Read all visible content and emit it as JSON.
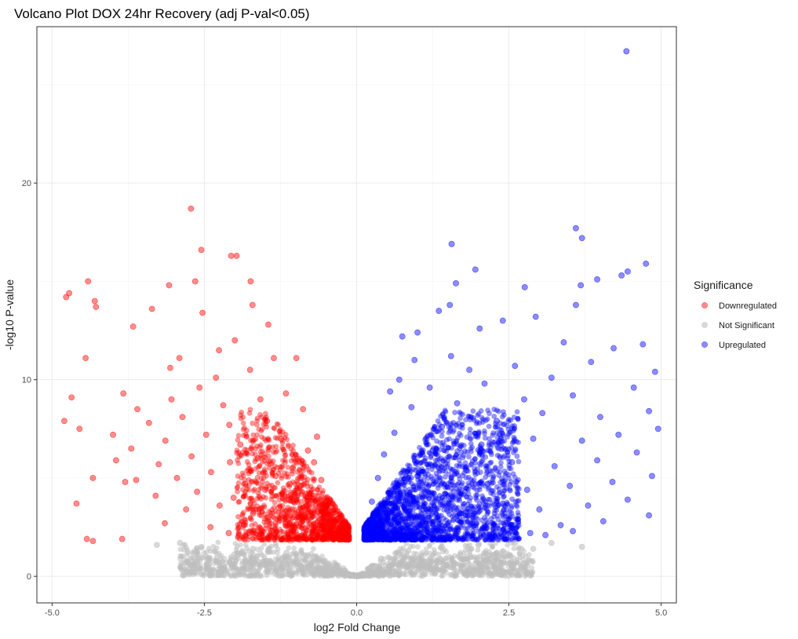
{
  "chart_data": {
    "type": "scatter",
    "title": "Volcano Plot DOX 24hr Recovery (adj P-val<0.05)",
    "xlabel": "log2 Fold Change",
    "ylabel": "-log10 P-value",
    "xlim": [
      -5.25,
      5.25
    ],
    "ylim": [
      -1.35,
      27.95
    ],
    "x_ticks": [
      -5.0,
      -2.5,
      0.0,
      2.5,
      5.0
    ],
    "x_tick_labels": [
      "-5.0",
      "-2.5",
      "0.0",
      "2.5",
      "5.0"
    ],
    "y_ticks": [
      0,
      10,
      20
    ],
    "y_tick_labels": [
      "0",
      "10",
      "20"
    ],
    "grid": true,
    "legend": {
      "title": "Significance",
      "placement": "right",
      "entries": [
        "Downregulated",
        "Not Significant",
        "Upregulated"
      ]
    },
    "colors": {
      "Downregulated": "#ff0000",
      "Not Significant": "#bebebe",
      "Upregulated": "#0000ff"
    },
    "significance_threshold_y": 1.8,
    "series": [
      {
        "name": "Downregulated",
        "points": [
          [
            -4.77,
            14.2
          ],
          [
            -4.72,
            14.4
          ],
          [
            -4.41,
            15.0
          ],
          [
            -4.3,
            14.0
          ],
          [
            -4.28,
            13.7
          ],
          [
            -4.45,
            11.1
          ],
          [
            -4.8,
            7.9
          ],
          [
            -4.68,
            9.1
          ],
          [
            -4.55,
            7.5
          ],
          [
            -4.6,
            3.7
          ],
          [
            -4.43,
            1.9
          ],
          [
            -4.33,
            1.8
          ],
          [
            -3.85,
            1.9
          ],
          [
            -4.33,
            5.0
          ],
          [
            -3.8,
            4.8
          ],
          [
            -2.72,
            18.7
          ],
          [
            -2.55,
            16.6
          ],
          [
            -2.06,
            16.3
          ],
          [
            -1.97,
            16.3
          ],
          [
            -2.65,
            15.0
          ],
          [
            -1.74,
            15.0
          ],
          [
            -3.08,
            14.8
          ],
          [
            -3.36,
            13.6
          ],
          [
            -1.71,
            13.8
          ],
          [
            -3.67,
            12.7
          ],
          [
            -2.53,
            13.4
          ],
          [
            -2.91,
            11.1
          ],
          [
            -2.0,
            12.0
          ],
          [
            -1.45,
            12.8
          ],
          [
            -2.26,
            11.5
          ],
          [
            -3.06,
            10.6
          ],
          [
            -2.58,
            9.6
          ],
          [
            -1.36,
            11.1
          ],
          [
            -0.99,
            11.1
          ],
          [
            -3.83,
            9.3
          ],
          [
            -2.31,
            10.1
          ],
          [
            -1.75,
            10.5
          ],
          [
            -1.16,
            9.3
          ],
          [
            -3.6,
            8.5
          ],
          [
            -3.04,
            9.0
          ],
          [
            -2.19,
            8.7
          ],
          [
            -1.58,
            9.0
          ],
          [
            -0.88,
            8.5
          ],
          [
            -4.0,
            7.2
          ],
          [
            -3.41,
            7.8
          ],
          [
            -2.86,
            8.1
          ],
          [
            -2.09,
            7.7
          ],
          [
            -1.47,
            7.9
          ],
          [
            -0.65,
            7.1
          ],
          [
            -3.7,
            6.5
          ],
          [
            -3.14,
            6.9
          ],
          [
            -2.47,
            7.2
          ],
          [
            -1.91,
            6.7
          ],
          [
            -1.24,
            7.0
          ],
          [
            -0.8,
            6.4
          ],
          [
            -3.95,
            5.9
          ],
          [
            -3.25,
            5.7
          ],
          [
            -2.71,
            6.1
          ],
          [
            -2.08,
            5.8
          ],
          [
            -1.62,
            6.0
          ],
          [
            -1.05,
            5.5
          ],
          [
            -0.7,
            5.8
          ],
          [
            -3.62,
            4.9
          ],
          [
            -2.95,
            5.0
          ],
          [
            -2.39,
            5.3
          ],
          [
            -1.83,
            4.7
          ],
          [
            -1.33,
            5.1
          ],
          [
            -0.92,
            4.6
          ],
          [
            -0.58,
            4.9
          ],
          [
            -3.3,
            4.1
          ],
          [
            -2.62,
            4.3
          ],
          [
            -2.02,
            4.0
          ],
          [
            -1.5,
            4.4
          ],
          [
            -1.12,
            3.9
          ],
          [
            -0.77,
            4.2
          ],
          [
            -0.5,
            3.6
          ],
          [
            -2.8,
            3.4
          ],
          [
            -2.25,
            3.6
          ],
          [
            -1.7,
            3.2
          ],
          [
            -1.28,
            3.5
          ],
          [
            -0.95,
            3.0
          ],
          [
            -0.64,
            3.3
          ],
          [
            -0.44,
            2.8
          ],
          [
            -3.15,
            2.7
          ],
          [
            -2.4,
            2.5
          ],
          [
            -1.85,
            2.6
          ],
          [
            -1.4,
            2.3
          ],
          [
            -1.02,
            2.5
          ],
          [
            -0.72,
            2.2
          ],
          [
            -0.47,
            2.1
          ],
          [
            -1.6,
            2.0
          ],
          [
            -1.18,
            1.95
          ],
          [
            -0.85,
            2.0
          ],
          [
            -0.55,
            1.9
          ],
          [
            -0.38,
            2.3
          ],
          [
            -2.1,
            2.2
          ],
          [
            -1.45,
            3.0
          ],
          [
            -0.6,
            2.6
          ],
          [
            -0.82,
            3.6
          ],
          [
            -1.1,
            4.7
          ]
        ]
      },
      {
        "name": "Not Significant",
        "points": [
          [
            -3.28,
            1.6
          ],
          [
            -2.9,
            1.7
          ],
          [
            -2.55,
            1.5
          ],
          [
            -2.3,
            0.9
          ],
          [
            -1.95,
            1.1
          ],
          [
            -1.7,
            1.4
          ],
          [
            -1.4,
            0.7
          ],
          [
            -1.15,
            1.2
          ],
          [
            -0.9,
            0.5
          ],
          [
            -0.7,
            1.0
          ],
          [
            -0.5,
            0.4
          ],
          [
            -0.3,
            0.3
          ],
          [
            -0.15,
            0.1
          ],
          [
            0.0,
            0.0
          ],
          [
            0.1,
            0.15
          ],
          [
            0.2,
            0.4
          ],
          [
            0.4,
            0.9
          ],
          [
            0.6,
            0.6
          ],
          [
            0.85,
            1.3
          ],
          [
            1.1,
            0.8
          ],
          [
            1.4,
            1.5
          ],
          [
            1.7,
            1.1
          ],
          [
            2.0,
            1.6
          ],
          [
            2.3,
            1.2
          ],
          [
            2.6,
            1.7
          ],
          [
            2.9,
            1.4
          ],
          [
            3.2,
            1.7
          ],
          [
            3.7,
            1.5
          ]
        ]
      },
      {
        "name": "Upregulated",
        "points": [
          [
            4.43,
            26.7
          ],
          [
            3.6,
            17.7
          ],
          [
            3.7,
            17.2
          ],
          [
            1.56,
            16.9
          ],
          [
            4.75,
            15.9
          ],
          [
            1.95,
            15.6
          ],
          [
            4.45,
            15.5
          ],
          [
            4.35,
            15.3
          ],
          [
            3.95,
            15.1
          ],
          [
            1.63,
            14.9
          ],
          [
            3.68,
            14.8
          ],
          [
            2.76,
            14.7
          ],
          [
            3.6,
            13.8
          ],
          [
            1.53,
            13.8
          ],
          [
            1.35,
            13.5
          ],
          [
            2.94,
            13.2
          ],
          [
            2.4,
            13.0
          ],
          [
            2.02,
            12.6
          ],
          [
            1.0,
            12.4
          ],
          [
            0.75,
            12.2
          ],
          [
            3.4,
            11.9
          ],
          [
            4.22,
            11.6
          ],
          [
            4.7,
            11.8
          ],
          [
            1.55,
            11.2
          ],
          [
            0.95,
            11.0
          ],
          [
            3.85,
            10.9
          ],
          [
            2.6,
            10.7
          ],
          [
            1.85,
            10.5
          ],
          [
            0.7,
            10.0
          ],
          [
            4.9,
            10.4
          ],
          [
            3.2,
            10.1
          ],
          [
            2.1,
            9.8
          ],
          [
            1.2,
            9.6
          ],
          [
            0.55,
            9.4
          ],
          [
            4.55,
            9.6
          ],
          [
            3.55,
            9.2
          ],
          [
            2.75,
            9.0
          ],
          [
            1.65,
            8.8
          ],
          [
            0.9,
            8.6
          ],
          [
            4.8,
            8.4
          ],
          [
            4.0,
            8.1
          ],
          [
            3.05,
            8.3
          ],
          [
            2.3,
            7.9
          ],
          [
            1.4,
            7.6
          ],
          [
            0.62,
            7.3
          ],
          [
            4.95,
            7.5
          ],
          [
            4.3,
            7.2
          ],
          [
            3.7,
            6.9
          ],
          [
            2.9,
            7.0
          ],
          [
            2.05,
            6.7
          ],
          [
            1.25,
            6.4
          ],
          [
            0.45,
            6.2
          ],
          [
            4.6,
            6.3
          ],
          [
            3.95,
            5.9
          ],
          [
            3.25,
            5.6
          ],
          [
            2.55,
            5.8
          ],
          [
            1.8,
            5.4
          ],
          [
            1.0,
            5.1
          ],
          [
            0.35,
            5.0
          ],
          [
            4.85,
            5.1
          ],
          [
            4.2,
            4.8
          ],
          [
            3.5,
            4.6
          ],
          [
            2.8,
            4.4
          ],
          [
            2.15,
            4.7
          ],
          [
            1.45,
            4.2
          ],
          [
            0.75,
            4.0
          ],
          [
            0.25,
            3.8
          ],
          [
            4.45,
            3.9
          ],
          [
            3.8,
            3.6
          ],
          [
            3.0,
            3.4
          ],
          [
            2.4,
            3.7
          ],
          [
            1.7,
            3.2
          ],
          [
            1.05,
            3.0
          ],
          [
            0.5,
            2.9
          ],
          [
            4.8,
            3.1
          ],
          [
            4.05,
            2.8
          ],
          [
            3.35,
            2.6
          ],
          [
            2.65,
            2.9
          ],
          [
            1.95,
            2.5
          ],
          [
            1.3,
            2.3
          ],
          [
            0.65,
            2.2
          ],
          [
            0.22,
            2.5
          ],
          [
            3.1,
            2.1
          ],
          [
            2.2,
            2.0
          ],
          [
            1.55,
            1.95
          ],
          [
            0.9,
            1.9
          ],
          [
            0.4,
            2.0
          ],
          [
            3.55,
            2.3
          ],
          [
            2.85,
            2.2
          ],
          [
            1.2,
            2.7
          ]
        ]
      }
    ]
  }
}
